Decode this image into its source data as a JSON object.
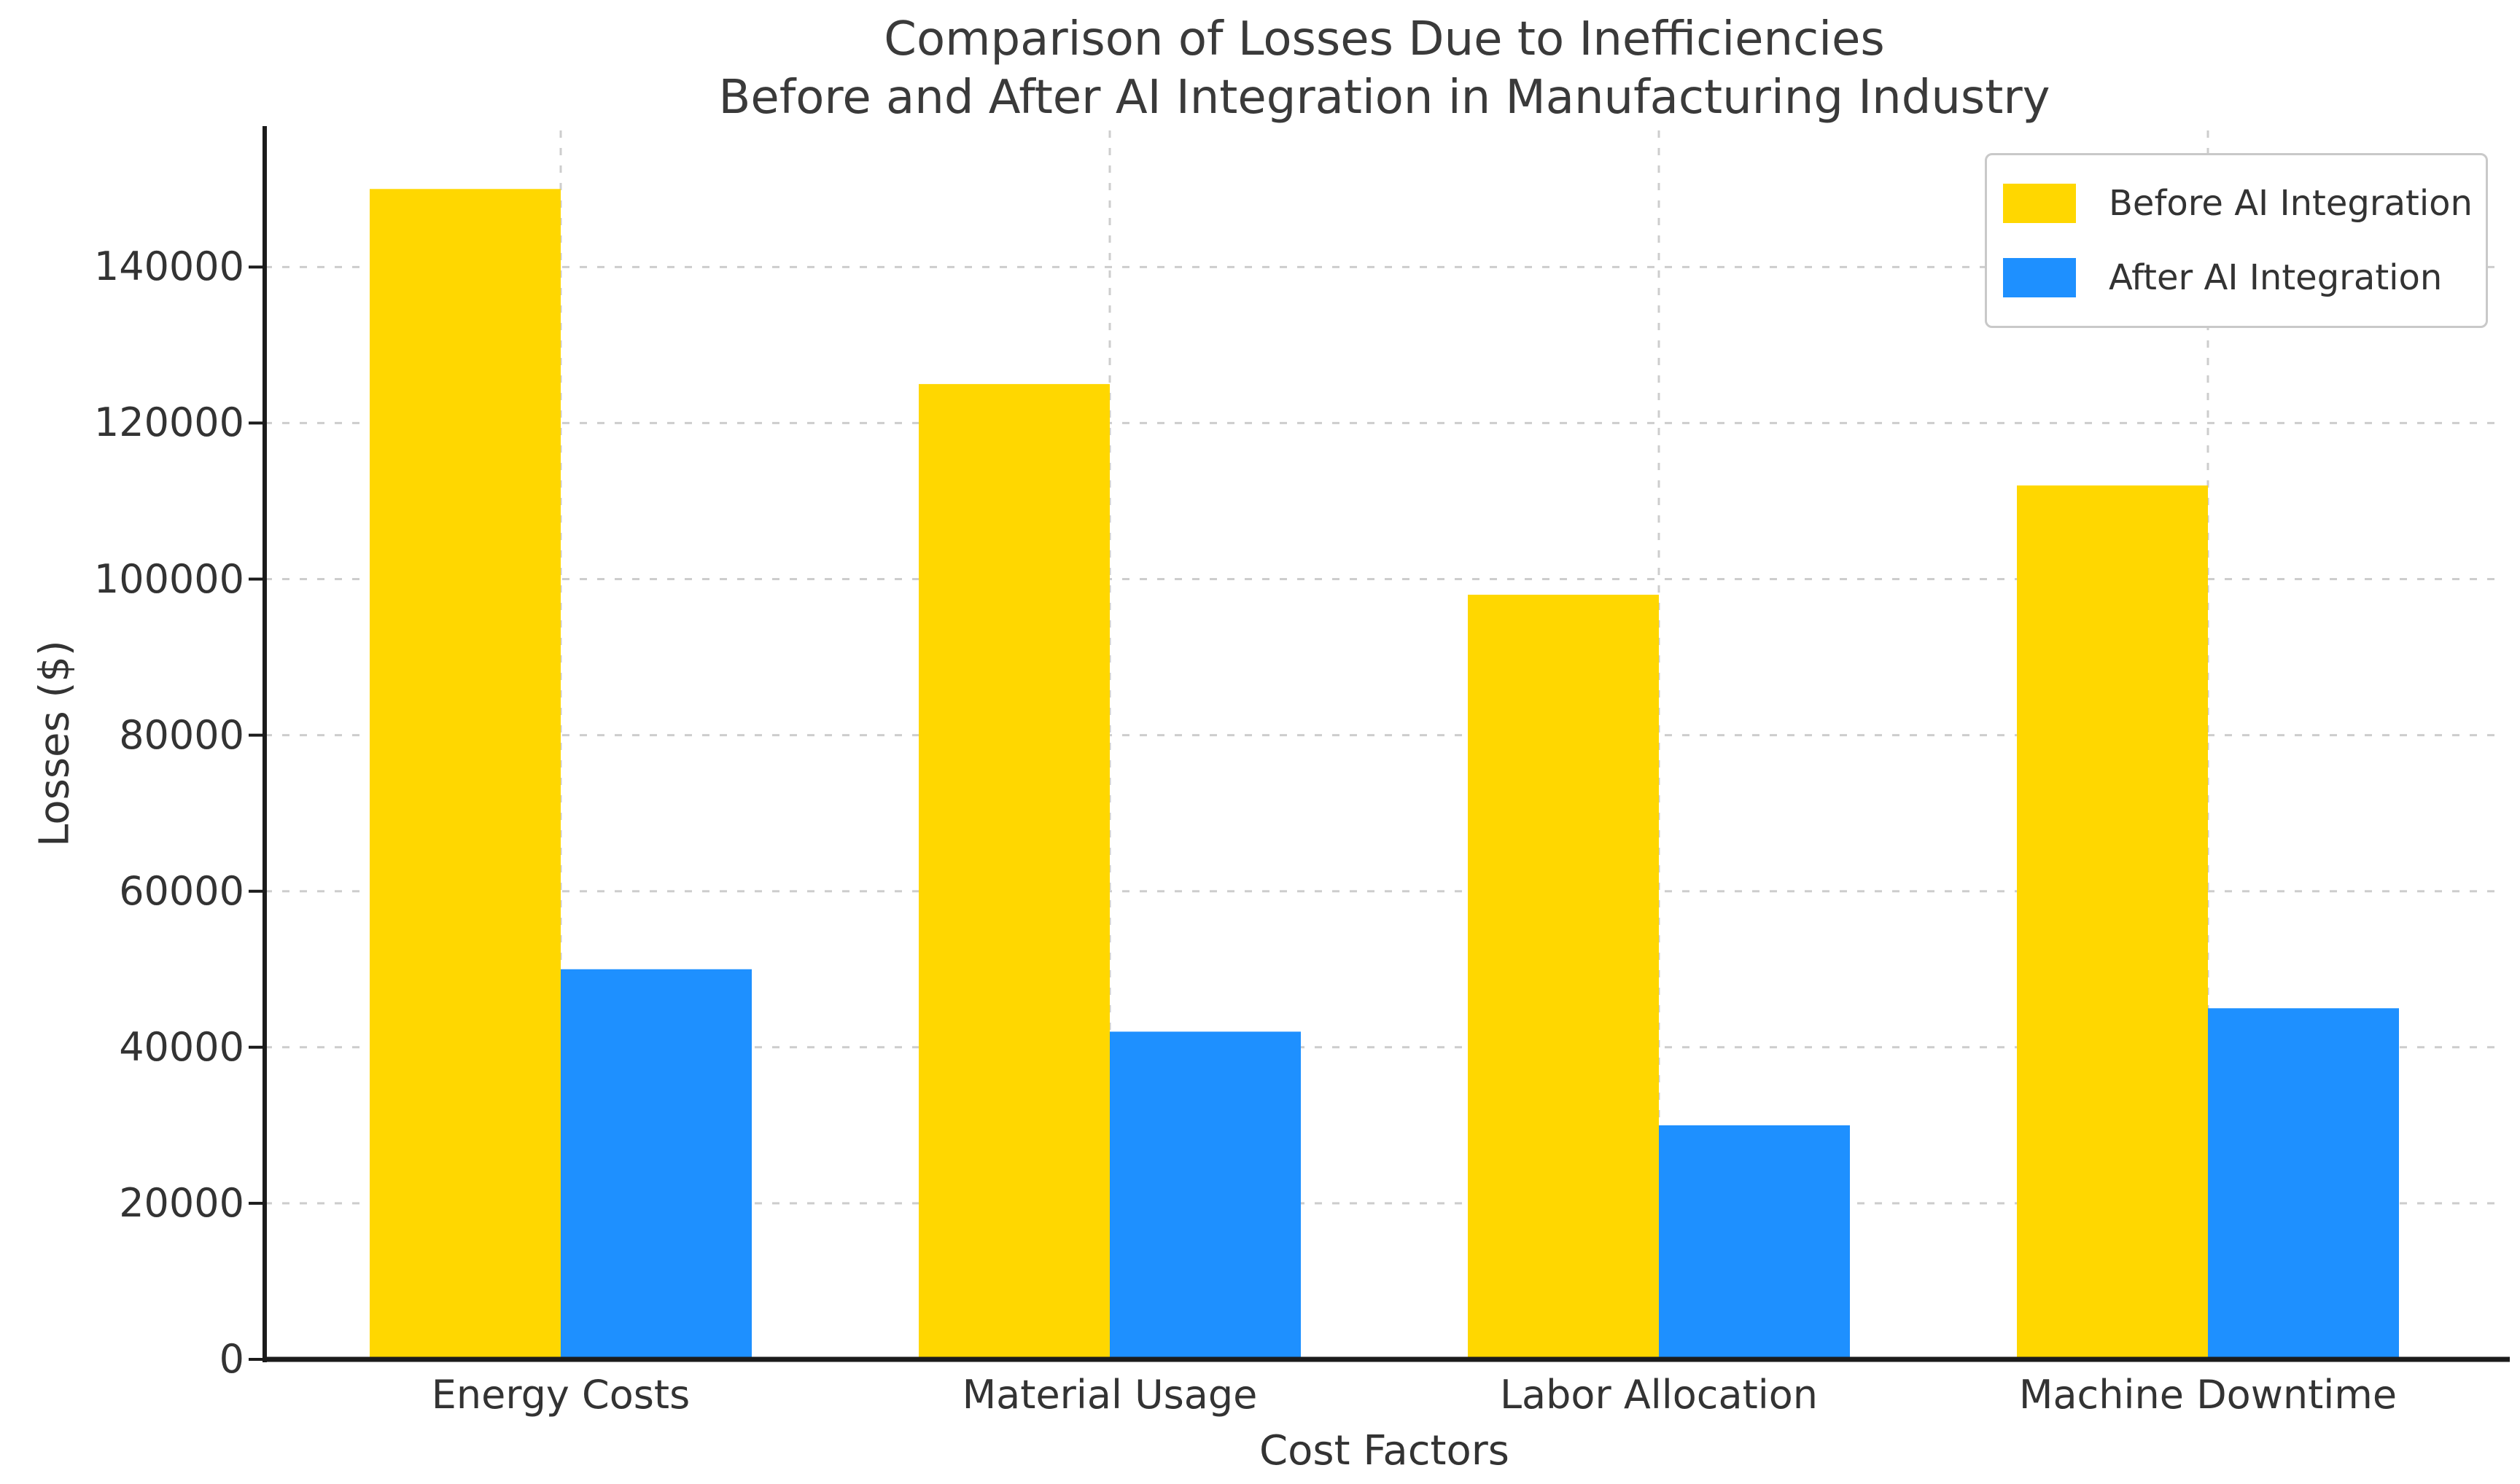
{
  "chart_data": {
    "type": "bar",
    "title_lines": [
      "Comparison of Losses Due to Inefficiencies",
      "Before and After AI Integration in Manufacturing Industry"
    ],
    "xlabel": "Cost Factors",
    "ylabel": "Losses ($)",
    "categories": [
      "Energy Costs",
      "Material Usage",
      "Labor Allocation",
      "Machine Downtime"
    ],
    "series": [
      {
        "name": "Before AI Integration",
        "color": "#FFD700",
        "values": [
          150000,
          125000,
          98000,
          112000
        ]
      },
      {
        "name": "After AI Integration",
        "color": "#1E90FF",
        "values": [
          50000,
          42000,
          30000,
          45000
        ]
      }
    ],
    "yticks": [
      0,
      20000,
      40000,
      60000,
      80000,
      100000,
      120000,
      140000
    ],
    "ylim": [
      0,
      157500
    ],
    "grid": {
      "style": "dashed",
      "axes": "both",
      "color": "#cdcdcd"
    },
    "legend_position": "upper right",
    "palette": {
      "spine": "#1b1b1b",
      "text": "#333333",
      "title_text": "#3a3a3a"
    }
  }
}
